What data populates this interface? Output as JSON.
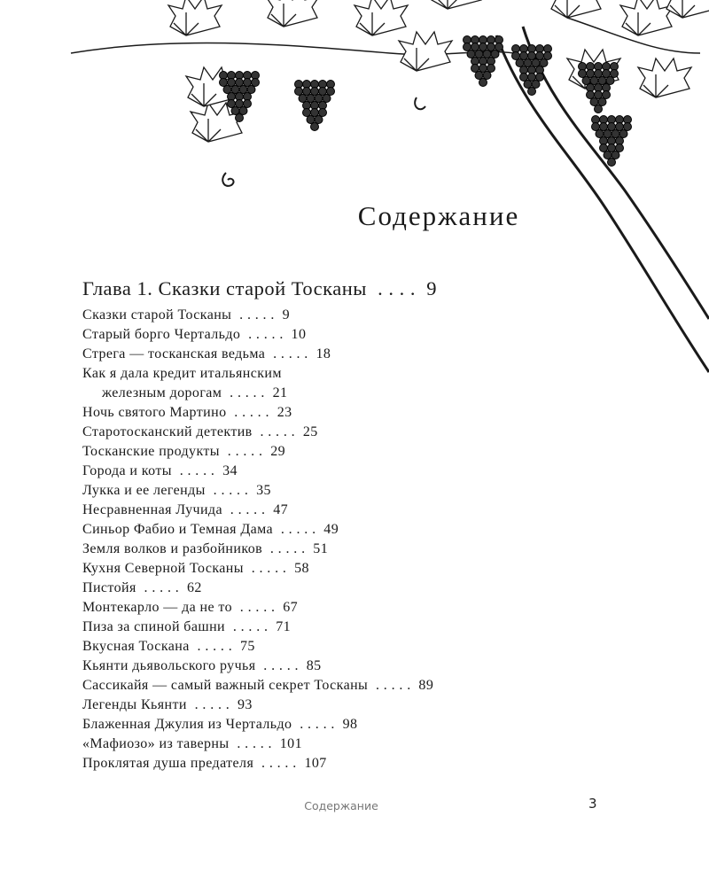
{
  "title": "Содержание",
  "chapter": {
    "label": "Глава 1. Сказки старой Тосканы",
    "leader": ". . . .",
    "page": "9"
  },
  "entries": [
    {
      "title": "Сказки старой Тосканы",
      "page": "9"
    },
    {
      "title": "Старый борго Чертальдо",
      "page": "10"
    },
    {
      "title": "Стрега — тосканская ведьма",
      "page": "18"
    },
    {
      "title": "Как я дала кредит итальянским",
      "title_cont": "железным дорогам",
      "page": "21"
    },
    {
      "title": "Ночь святого Мартино",
      "page": "23"
    },
    {
      "title": "Старотосканский детектив",
      "page": "25"
    },
    {
      "title": "Тосканские продукты",
      "page": "29"
    },
    {
      "title": "Города и коты",
      "page": "34"
    },
    {
      "title": "Лукка и ее легенды",
      "page": "35"
    },
    {
      "title": "Несравненная Лучида",
      "page": "47"
    },
    {
      "title": "Синьор Фабио и Темная Дама",
      "page": "49"
    },
    {
      "title": "Земля волков и разбойников",
      "page": "51"
    },
    {
      "title": "Кухня Северной Тосканы",
      "page": "58"
    },
    {
      "title": "Пистойя",
      "page": "62"
    },
    {
      "title": "Монтекарло — да не то",
      "page": "67"
    },
    {
      "title": "Пиза за спиной башни",
      "page": "71"
    },
    {
      "title": "Вкусная Тоскана",
      "page": "75"
    },
    {
      "title": "Кьянти дьявольского ручья",
      "page": "85"
    },
    {
      "title": "Сассикайя — самый важный секрет Тосканы",
      "page": "89"
    },
    {
      "title": "Легенды Кьянти",
      "page": "93"
    },
    {
      "title": "Блаженная Джулия из Чертальдо",
      "page": "98"
    },
    {
      "title": "«Мафиозо» из таверны",
      "page": "101"
    },
    {
      "title": "Проклятая душа предателя",
      "page": "107"
    }
  ],
  "entry_leader": ". . . . .",
  "footer": {
    "running_title": "Содержание",
    "page_number": "3"
  },
  "illustration": {
    "subject": "grapevine-tree-engraving",
    "ink": "#1a1a1a"
  }
}
